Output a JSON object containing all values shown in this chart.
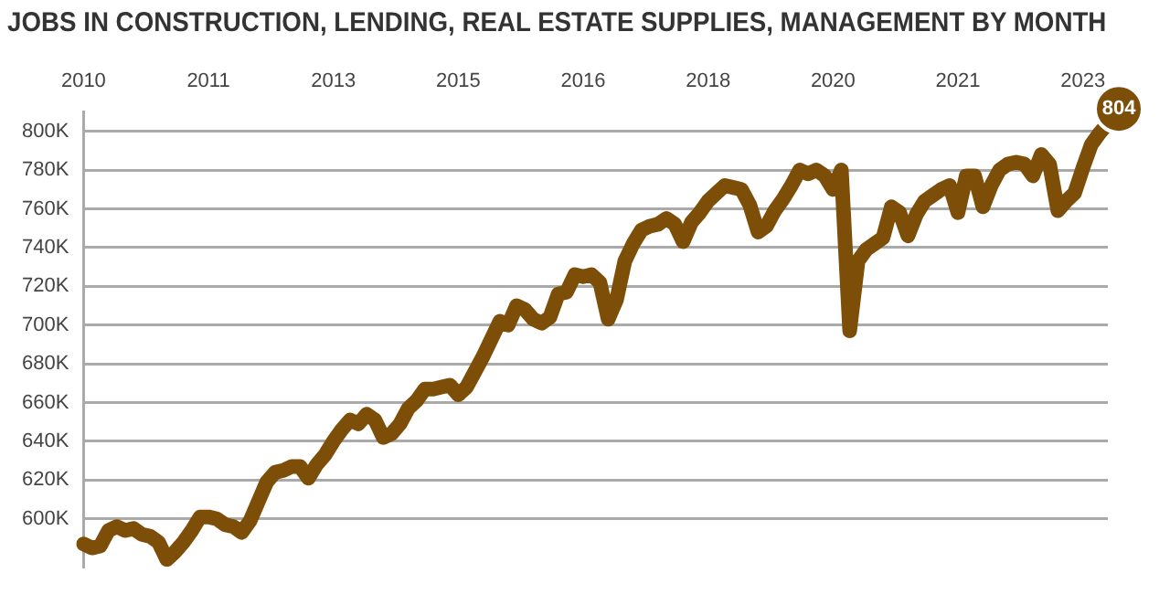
{
  "chart_data": {
    "type": "line",
    "title": "JOBS IN CONSTRUCTION, LENDING, REAL ESTATE SUPPLIES, MANAGEMENT BY MONTH",
    "categories": [
      "2010",
      null,
      null,
      null,
      null,
      null,
      null,
      null,
      null,
      null,
      null,
      null,
      null,
      null,
      null,
      "2011",
      null,
      null,
      null,
      null,
      null,
      null,
      null,
      null,
      null,
      null,
      null,
      null,
      null,
      null,
      "2013",
      null,
      null,
      null,
      null,
      null,
      null,
      null,
      null,
      null,
      null,
      null,
      null,
      null,
      null,
      "2015",
      null,
      null,
      null,
      null,
      null,
      null,
      null,
      null,
      null,
      null,
      null,
      null,
      null,
      null,
      "2016",
      null,
      null,
      null,
      null,
      null,
      null,
      null,
      null,
      null,
      null,
      null,
      null,
      null,
      null,
      "2018",
      null,
      null,
      null,
      null,
      null,
      null,
      null,
      null,
      null,
      null,
      null,
      null,
      null,
      null,
      "2020",
      null,
      null,
      null,
      null,
      null,
      null,
      null,
      null,
      null,
      null,
      null,
      null,
      null,
      null,
      "2021",
      null,
      null,
      null,
      null,
      null,
      null,
      null,
      null,
      null,
      null,
      null,
      null,
      null,
      null,
      "2023",
      null,
      null,
      null
    ],
    "series": [
      {
        "color": "#7d4e07",
        "values": [
          587,
          585,
          586,
          594,
          596,
          594,
          595,
          592,
          591,
          588,
          579,
          583,
          588,
          594,
          601,
          601,
          600,
          597,
          596,
          593,
          599,
          609,
          619,
          624,
          625,
          627,
          627,
          621,
          628,
          633,
          640,
          646,
          651,
          649,
          654,
          651,
          642,
          644,
          649,
          657,
          661,
          667,
          667,
          668,
          669,
          664,
          668,
          676,
          684,
          693,
          702,
          700,
          710,
          708,
          703,
          701,
          704,
          716,
          717,
          726,
          725,
          726,
          722,
          703,
          713,
          733,
          742,
          749,
          751,
          752,
          755,
          752,
          743,
          753,
          758,
          764,
          768,
          772,
          771,
          770,
          762,
          748,
          751,
          759,
          765,
          772,
          780,
          778,
          780,
          777,
          770,
          780,
          697,
          733,
          739,
          742,
          745,
          761,
          758,
          746,
          757,
          764,
          767,
          770,
          772,
          758,
          777,
          777,
          761,
          772,
          780,
          783,
          784,
          783,
          777,
          788,
          783,
          759,
          764,
          768,
          781,
          793,
          799,
          804
        ],
        "value_labels": [
          null,
          null,
          null,
          null,
          null,
          null,
          null,
          null,
          null,
          null,
          null,
          null,
          null,
          null,
          null,
          null,
          null,
          null,
          null,
          null,
          null,
          null,
          null,
          null,
          null,
          null,
          null,
          null,
          null,
          null,
          null,
          null,
          null,
          null,
          null,
          null,
          null,
          null,
          null,
          null,
          null,
          null,
          null,
          null,
          null,
          null,
          null,
          null,
          null,
          null,
          null,
          null,
          null,
          null,
          null,
          null,
          null,
          null,
          null,
          null,
          null,
          null,
          null,
          null,
          null,
          null,
          null,
          null,
          null,
          null,
          null,
          null,
          null,
          null,
          null,
          null,
          null,
          null,
          null,
          null,
          null,
          null,
          null,
          null,
          null,
          null,
          null,
          null,
          null,
          null,
          null,
          null,
          null,
          null,
          null,
          null,
          null,
          null,
          null,
          null,
          null,
          null,
          null,
          null,
          null,
          null,
          null,
          null,
          null,
          null,
          null,
          null,
          null,
          null,
          null,
          null,
          null,
          null,
          null,
          null,
          null,
          null,
          null,
          "804"
        ]
      }
    ],
    "ylim": [
      575,
      810
    ],
    "yticks": [
      {
        "value": 600,
        "label": "600K"
      },
      {
        "value": 620,
        "label": "620K"
      },
      {
        "value": 640,
        "label": "640K"
      },
      {
        "value": 660,
        "label": "660K"
      },
      {
        "value": 680,
        "label": "680K"
      },
      {
        "value": 700,
        "label": "700K"
      },
      {
        "value": 720,
        "label": "720K"
      },
      {
        "value": 740,
        "label": "740K"
      },
      {
        "value": 760,
        "label": "760K"
      },
      {
        "value": 780,
        "label": "780K"
      },
      {
        "value": 800,
        "label": "800K"
      }
    ],
    "grid": "y",
    "legend": false,
    "marker": "none",
    "line_style": "solid"
  }
}
